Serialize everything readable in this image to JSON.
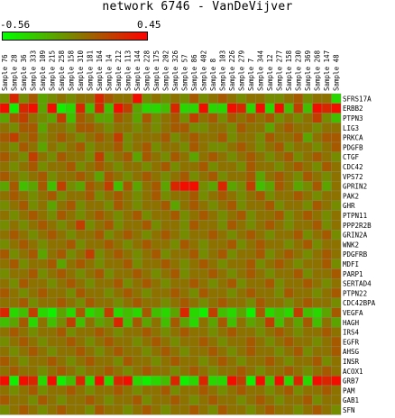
{
  "chart_data": {
    "type": "heatmap",
    "title": "network 6746 - VanDeVijver",
    "color_scale": {
      "min": -0.56,
      "max": 0.45,
      "min_label": "-0.56",
      "max_label": "0.45",
      "low_color": "#00ff00",
      "mid_color": "#808000",
      "high_color": "#ff0000"
    },
    "columns": [
      "Sample 76",
      "Sample 28",
      "Sample 36",
      "Sample 333",
      "Sample 109",
      "Sample 215",
      "Sample 258",
      "Sample 158",
      "Sample 310",
      "Sample 181",
      "Sample 164",
      "Sample 14",
      "Sample 212",
      "Sample 113",
      "Sample 144",
      "Sample 228",
      "Sample 175",
      "Sample 202",
      "Sample 326",
      "Sample 57",
      "Sample 86",
      "Sample 402",
      "Sample 8",
      "Sample 103",
      "Sample 226",
      "Sample 279",
      "Sample 7",
      "Sample 344",
      "Sample 12",
      "Sample 277",
      "Sample 158",
      "Sample 230",
      "Sample 369",
      "Sample 268",
      "Sample 147",
      "Sample 48"
    ],
    "rows": [
      "SFRS17A",
      "ERBB2",
      "PTPN3",
      "LIG3",
      "PRKCA",
      "PDGFB",
      "CTGF",
      "CDC42",
      "VPS72",
      "GPRIN2",
      "PAK2",
      "GHR",
      "PTPN11",
      "PPP2R2B",
      "GRIN2A",
      "WNK2",
      "PDGFRB",
      "MDFI",
      "PARP1",
      "SERTAD4",
      "PTPN22",
      "CDC42BPA",
      "VEGFA",
      "HAGH",
      "IRS4",
      "EGFR",
      "AHSG",
      "INSR",
      "ACOX1",
      "GRB7",
      "PAM",
      "GAB1",
      "SFN"
    ],
    "values": [
      [
        -0.1,
        0.3,
        -0.1,
        0.1,
        -0.2,
        -0.1,
        0.0,
        -0.1,
        0.0,
        0.0,
        0.3,
        0.1,
        0.0,
        0.0,
        0.4,
        -0.1,
        0.0,
        -0.1,
        0.0,
        -0.1,
        0.1,
        -0.1,
        0.0,
        0.1,
        0.0,
        -0.1,
        0.0,
        0.0,
        -0.1,
        -0.1,
        0.0,
        0.1,
        -0.1,
        0.0,
        0.0,
        -0.4
      ],
      [
        0.4,
        -0.5,
        0.3,
        0.4,
        -0.2,
        0.4,
        -0.5,
        -0.4,
        0.3,
        -0.3,
        0.3,
        -0.3,
        0.4,
        0.2,
        -0.2,
        -0.4,
        -0.4,
        -0.3,
        0.3,
        -0.4,
        -0.4,
        0.4,
        -0.4,
        -0.4,
        0.4,
        0.3,
        -0.4,
        0.4,
        -0.4,
        0.4,
        -0.3,
        0.2,
        -0.3,
        0.4,
        0.3,
        0.4
      ],
      [
        -0.2,
        0.1,
        0.2,
        0.0,
        -0.1,
        -0.2,
        0.2,
        -0.3,
        0.1,
        0.0,
        -0.2,
        -0.2,
        0.1,
        0.0,
        -0.2,
        0.1,
        -0.1,
        0.0,
        0.1,
        -0.1,
        0.2,
        0.0,
        0.1,
        -0.1,
        0.1,
        0.0,
        0.1,
        0.0,
        0.1,
        -0.1,
        0.0,
        -0.1,
        0.0,
        0.2,
        -0.1,
        -0.3
      ],
      [
        0.0,
        -0.1,
        0.1,
        0.1,
        -0.2,
        0.0,
        0.0,
        -0.1,
        0.1,
        0.1,
        0.0,
        -0.1,
        0.0,
        0.0,
        -0.1,
        0.0,
        -0.1,
        0.0,
        0.1,
        0.1,
        -0.1,
        -0.1,
        0.0,
        0.0,
        -0.1,
        0.1,
        0.0,
        0.0,
        -0.2,
        0.0,
        0.1,
        0.0,
        0.0,
        -0.1,
        0.0,
        0.0
      ],
      [
        0.1,
        0.2,
        0.0,
        0.1,
        -0.1,
        0.0,
        0.1,
        0.0,
        -0.1,
        0.0,
        0.1,
        0.0,
        0.2,
        -0.1,
        0.0,
        0.0,
        0.0,
        0.1,
        -0.1,
        0.0,
        0.1,
        0.0,
        0.0,
        0.1,
        -0.1,
        0.0,
        0.0,
        -0.1,
        0.1,
        0.0,
        0.0,
        0.1,
        -0.2,
        0.0,
        0.1,
        0.1
      ],
      [
        0.0,
        -0.1,
        0.1,
        0.0,
        -0.2,
        0.0,
        -0.1,
        0.0,
        0.1,
        -0.1,
        0.0,
        0.0,
        0.1,
        -0.1,
        0.0,
        0.1,
        -0.1,
        0.0,
        0.0,
        -0.1,
        0.1,
        0.0,
        -0.1,
        -0.1,
        0.0,
        0.1,
        0.0,
        -0.1,
        0.0,
        0.1,
        -0.1,
        0.0,
        0.0,
        -0.1,
        0.0,
        0.1
      ],
      [
        0.1,
        0.0,
        -0.1,
        0.2,
        0.0,
        -0.1,
        0.1,
        0.0,
        0.0,
        -0.1,
        0.2,
        -0.1,
        0.0,
        0.1,
        -0.2,
        0.1,
        0.0,
        -0.1,
        0.1,
        0.0,
        -0.2,
        0.0,
        0.1,
        0.0,
        -0.1,
        0.0,
        0.1,
        0.0,
        -0.1,
        0.0,
        0.1,
        -0.1,
        0.0,
        0.1,
        0.0,
        -0.1
      ],
      [
        0.0,
        -0.1,
        0.0,
        0.1,
        -0.1,
        0.0,
        0.0,
        0.1,
        -0.1,
        0.0,
        0.1,
        0.0,
        -0.1,
        0.0,
        0.0,
        -0.1,
        0.0,
        0.1,
        -0.1,
        0.0,
        0.0,
        0.1,
        -0.1,
        0.0,
        0.0,
        -0.1,
        0.1,
        0.0,
        0.0,
        -0.1,
        0.0,
        0.1,
        0.0,
        -0.1,
        0.1,
        0.0
      ],
      [
        0.1,
        0.0,
        -0.1,
        0.0,
        0.1,
        -0.1,
        0.0,
        0.0,
        0.1,
        0.0,
        -0.2,
        0.1,
        0.0,
        -0.1,
        0.0,
        0.1,
        0.0,
        -0.1,
        0.0,
        0.1,
        -0.1,
        0.0,
        0.1,
        -0.1,
        0.0,
        0.0,
        0.1,
        -0.2,
        0.0,
        0.1,
        0.0,
        -0.1,
        0.1,
        0.0,
        -0.1,
        0.0
      ],
      [
        -0.2,
        0.1,
        -0.3,
        -0.2,
        0.1,
        -0.3,
        0.2,
        -0.1,
        -0.2,
        0.1,
        0.0,
        0.2,
        -0.3,
        0.1,
        -0.2,
        0.0,
        0.1,
        -0.2,
        0.3,
        0.4,
        0.4,
        -0.1,
        -0.2,
        0.3,
        -0.2,
        -0.1,
        0.2,
        -0.3,
        -0.2,
        0.1,
        0.0,
        -0.2,
        -0.1,
        0.1,
        -0.2,
        0.0
      ],
      [
        0.0,
        0.1,
        0.0,
        -0.1,
        0.0,
        0.1,
        -0.1,
        0.0,
        0.0,
        0.1,
        -0.1,
        0.0,
        0.1,
        0.0,
        -0.1,
        0.0,
        0.1,
        -0.1,
        0.0,
        0.0,
        0.1,
        -0.1,
        0.0,
        0.1,
        0.0,
        -0.1,
        0.0,
        0.1,
        -0.1,
        0.0,
        0.0,
        0.1,
        0.0,
        -0.1,
        0.0,
        0.0
      ],
      [
        -0.1,
        0.0,
        0.1,
        -0.1,
        0.0,
        -0.2,
        0.0,
        0.1,
        -0.1,
        0.0,
        0.0,
        -0.1,
        0.1,
        0.0,
        -0.1,
        0.0,
        0.0,
        0.1,
        -0.2,
        0.0,
        0.1,
        0.0,
        -0.1,
        0.0,
        0.1,
        -0.1,
        0.0,
        0.0,
        0.1,
        -0.1,
        0.0,
        0.0,
        -0.1,
        0.1,
        0.0,
        -0.1
      ],
      [
        0.0,
        -0.1,
        0.0,
        0.1,
        0.0,
        -0.1,
        0.1,
        0.0,
        -0.1,
        0.0,
        0.1,
        0.0,
        -0.1,
        0.0,
        0.1,
        -0.1,
        0.0,
        0.0,
        0.1,
        -0.1,
        0.0,
        0.1,
        0.0,
        -0.1,
        0.0,
        0.1,
        -0.1,
        0.0,
        0.0,
        0.1,
        -0.1,
        0.0,
        0.1,
        0.0,
        -0.1,
        0.0
      ],
      [
        -0.1,
        0.0,
        -0.1,
        0.0,
        0.1,
        0.0,
        -0.1,
        0.0,
        0.2,
        -0.1,
        0.0,
        0.1,
        -0.1,
        0.0,
        0.0,
        0.1,
        -0.1,
        0.0,
        0.0,
        -0.1,
        0.1,
        0.0,
        0.0,
        -0.1,
        0.1,
        0.0,
        -0.1,
        0.0,
        0.1,
        0.0,
        -0.1,
        0.0,
        0.0,
        0.1,
        -0.1,
        0.0
      ],
      [
        0.0,
        0.1,
        0.0,
        -0.1,
        0.0,
        0.1,
        0.0,
        -0.1,
        0.0,
        0.0,
        0.1,
        -0.1,
        0.0,
        0.1,
        0.0,
        -0.1,
        0.0,
        0.1,
        0.0,
        -0.1,
        0.0,
        0.0,
        0.1,
        0.0,
        -0.1,
        0.0,
        0.1,
        0.0,
        -0.1,
        0.0,
        0.0,
        0.1,
        -0.1,
        0.0,
        0.1,
        -0.1
      ],
      [
        -0.1,
        0.0,
        0.1,
        0.0,
        -0.1,
        0.0,
        0.0,
        0.1,
        -0.1,
        0.0,
        0.0,
        0.1,
        0.0,
        -0.1,
        0.0,
        0.1,
        0.0,
        0.0,
        -0.1,
        0.1,
        0.0,
        -0.1,
        0.0,
        0.0,
        0.1,
        -0.1,
        0.0,
        0.1,
        0.0,
        0.0,
        -0.1,
        0.0,
        0.1,
        -0.1,
        0.0,
        0.0
      ],
      [
        0.1,
        -0.1,
        0.0,
        0.1,
        -0.2,
        0.0,
        0.1,
        -0.1,
        0.0,
        0.2,
        -0.1,
        0.0,
        0.1,
        0.0,
        -0.1,
        0.0,
        0.1,
        -0.1,
        0.0,
        0.0,
        0.1,
        -0.1,
        0.0,
        0.1,
        -0.1,
        0.0,
        0.0,
        0.1,
        -0.1,
        0.0,
        0.1,
        0.0,
        -0.1,
        0.0,
        0.1,
        0.0
      ],
      [
        0.0,
        0.1,
        -0.1,
        0.0,
        0.0,
        0.1,
        -0.2,
        0.0,
        0.1,
        0.0,
        -0.1,
        0.0,
        0.0,
        0.1,
        -0.1,
        0.0,
        0.0,
        0.1,
        0.0,
        -0.1,
        0.0,
        0.1,
        0.0,
        -0.1,
        0.0,
        0.0,
        0.1,
        -0.1,
        0.0,
        0.1,
        0.0,
        -0.1,
        0.0,
        0.0,
        0.1,
        -0.1
      ],
      [
        -0.1,
        0.0,
        0.0,
        0.1,
        -0.1,
        0.0,
        0.1,
        0.0,
        -0.1,
        0.0,
        0.1,
        -0.1,
        0.0,
        0.0,
        0.1,
        0.0,
        -0.1,
        0.0,
        0.1,
        -0.1,
        0.0,
        0.0,
        0.1,
        0.0,
        -0.1,
        0.0,
        0.1,
        0.0,
        -0.1,
        0.0,
        0.0,
        0.1,
        -0.1,
        0.0,
        0.0,
        0.1
      ],
      [
        0.0,
        -0.1,
        0.1,
        0.0,
        0.0,
        -0.1,
        0.0,
        0.1,
        0.0,
        -0.1,
        0.0,
        0.0,
        0.1,
        -0.1,
        0.0,
        0.1,
        0.0,
        -0.1,
        0.0,
        0.0,
        0.1,
        0.0,
        -0.1,
        0.0,
        0.1,
        -0.1,
        0.0,
        0.0,
        0.1,
        -0.1,
        0.0,
        0.0,
        0.1,
        0.0,
        -0.1,
        0.0
      ],
      [
        0.1,
        0.0,
        -0.1,
        0.0,
        0.1,
        0.0,
        0.0,
        -0.1,
        0.1,
        0.0,
        0.0,
        -0.1,
        0.0,
        0.1,
        0.0,
        -0.1,
        0.0,
        0.0,
        0.1,
        0.0,
        -0.1,
        0.1,
        0.0,
        0.0,
        -0.1,
        0.0,
        0.1,
        0.0,
        0.0,
        -0.1,
        0.1,
        0.0,
        0.0,
        -0.1,
        0.0,
        0.1
      ],
      [
        0.0,
        0.0,
        0.1,
        -0.1,
        0.0,
        0.0,
        0.1,
        0.0,
        -0.1,
        0.1,
        0.0,
        0.0,
        -0.1,
        0.0,
        0.1,
        0.0,
        0.0,
        -0.1,
        0.0,
        0.1,
        0.0,
        -0.1,
        0.0,
        0.1,
        0.0,
        0.0,
        -0.1,
        0.1,
        0.0,
        0.0,
        -0.1,
        0.0,
        0.1,
        0.0,
        0.0,
        -0.1
      ],
      [
        0.3,
        -0.4,
        -0.3,
        0.2,
        -0.4,
        -0.5,
        -0.2,
        -0.4,
        0.1,
        -0.4,
        -0.3,
        0.2,
        -0.4,
        -0.3,
        -0.4,
        0.1,
        -0.3,
        -0.4,
        -0.2,
        0.3,
        -0.4,
        -0.5,
        0.2,
        -0.3,
        -0.4,
        -0.2,
        -0.5,
        0.1,
        -0.4,
        -0.3,
        -0.4,
        0.2,
        -0.3,
        -0.4,
        -0.2,
        0.1
      ],
      [
        -0.3,
        -0.2,
        0.1,
        -0.4,
        0.0,
        -0.3,
        -0.1,
        0.2,
        -0.3,
        0.0,
        -0.2,
        -0.1,
        0.3,
        -0.3,
        0.1,
        -0.2,
        0.0,
        -0.3,
        0.1,
        -0.2,
        -0.4,
        0.0,
        -0.2,
        0.1,
        -0.3,
        0.0,
        -0.2,
        -0.1,
        0.2,
        -0.3,
        0.0,
        -0.2,
        0.1,
        -0.3,
        0.0,
        -0.2
      ],
      [
        0.0,
        0.1,
        0.0,
        -0.1,
        0.0,
        0.0,
        0.1,
        -0.1,
        0.0,
        0.0,
        0.1,
        0.0,
        -0.1,
        0.0,
        0.0,
        0.1,
        0.0,
        -0.1,
        0.0,
        0.1,
        0.0,
        0.0,
        -0.1,
        0.0,
        0.1,
        0.0,
        0.0,
        -0.1,
        0.0,
        0.1,
        0.0,
        -0.1,
        0.0,
        0.0,
        0.1,
        0.0
      ],
      [
        -0.1,
        0.0,
        0.1,
        0.0,
        -0.1,
        0.0,
        0.0,
        0.1,
        0.0,
        -0.1,
        0.0,
        0.1,
        0.0,
        0.0,
        -0.1,
        0.0,
        0.1,
        0.0,
        -0.1,
        0.0,
        0.0,
        0.1,
        0.0,
        -0.1,
        0.0,
        0.0,
        0.1,
        0.0,
        -0.1,
        0.0,
        0.1,
        0.0,
        0.0,
        -0.1,
        0.0,
        0.1
      ],
      [
        0.0,
        -0.1,
        0.0,
        0.1,
        0.0,
        -0.1,
        0.0,
        0.0,
        0.1,
        0.0,
        -0.1,
        0.0,
        0.1,
        0.0,
        0.0,
        -0.1,
        0.0,
        0.1,
        0.0,
        -0.1,
        0.0,
        0.0,
        0.1,
        0.0,
        -0.1,
        0.0,
        0.1,
        0.0,
        0.0,
        -0.1,
        0.0,
        0.1,
        -0.1,
        0.0,
        0.0,
        0.1
      ],
      [
        0.1,
        0.0,
        -0.1,
        0.0,
        0.0,
        0.1,
        0.0,
        -0.1,
        0.0,
        0.1,
        0.0,
        0.0,
        -0.1,
        0.1,
        0.0,
        0.0,
        -0.1,
        0.0,
        0.1,
        0.0,
        0.0,
        -0.1,
        0.0,
        0.1,
        0.0,
        -0.1,
        0.0,
        0.0,
        0.1,
        0.0,
        -0.1,
        0.0,
        0.0,
        0.1,
        -0.1,
        0.0
      ],
      [
        0.0,
        0.1,
        0.0,
        0.0,
        -0.1,
        0.0,
        0.1,
        0.0,
        -0.1,
        0.0,
        0.0,
        0.1,
        0.0,
        -0.1,
        0.0,
        0.1,
        0.0,
        0.0,
        -0.1,
        0.0,
        0.1,
        0.0,
        -0.1,
        0.0,
        0.0,
        0.1,
        0.0,
        -0.1,
        0.0,
        0.0,
        0.1,
        0.0,
        -0.1,
        0.0,
        0.1,
        0.0
      ],
      [
        0.4,
        -0.5,
        0.4,
        0.3,
        -0.4,
        0.4,
        -0.5,
        -0.3,
        0.3,
        -0.4,
        0.4,
        -0.4,
        0.3,
        0.4,
        -0.4,
        -0.5,
        -0.4,
        -0.3,
        0.3,
        -0.5,
        -0.4,
        0.3,
        -0.4,
        -0.4,
        0.4,
        0.2,
        -0.5,
        0.4,
        -0.3,
        0.4,
        -0.4,
        0.3,
        -0.4,
        0.4,
        0.3,
        0.4
      ],
      [
        0.0,
        -0.1,
        0.0,
        0.1,
        -0.1,
        0.0,
        0.0,
        0.1,
        0.0,
        -0.1,
        0.0,
        0.0,
        0.1,
        0.0,
        -0.1,
        0.0,
        0.0,
        0.1,
        -0.1,
        0.0,
        0.0,
        0.1,
        0.0,
        -0.1,
        0.0,
        0.1,
        0.0,
        0.0,
        -0.1,
        0.0,
        0.1,
        -0.1,
        0.0,
        0.0,
        0.1,
        0.0
      ],
      [
        0.1,
        0.0,
        0.0,
        -0.1,
        0.1,
        0.0,
        -0.1,
        0.0,
        0.0,
        0.1,
        0.0,
        -0.1,
        0.0,
        0.0,
        0.1,
        -0.1,
        0.0,
        0.0,
        0.1,
        0.0,
        -0.1,
        0.0,
        0.1,
        0.0,
        0.0,
        -0.1,
        0.0,
        0.1,
        0.0,
        -0.1,
        0.0,
        0.0,
        0.1,
        -0.1,
        0.0,
        0.0
      ],
      [
        -0.1,
        0.0,
        0.1,
        0.0,
        -0.1,
        0.0,
        0.1,
        0.0,
        0.0,
        -0.1,
        0.1,
        0.0,
        0.0,
        -0.1,
        0.0,
        0.1,
        0.0,
        -0.1,
        0.0,
        0.0,
        0.1,
        0.0,
        -0.1,
        0.1,
        0.0,
        0.0,
        -0.1,
        0.0,
        0.1,
        0.0,
        0.0,
        -0.1,
        0.0,
        0.1,
        0.0,
        -0.1
      ]
    ]
  }
}
